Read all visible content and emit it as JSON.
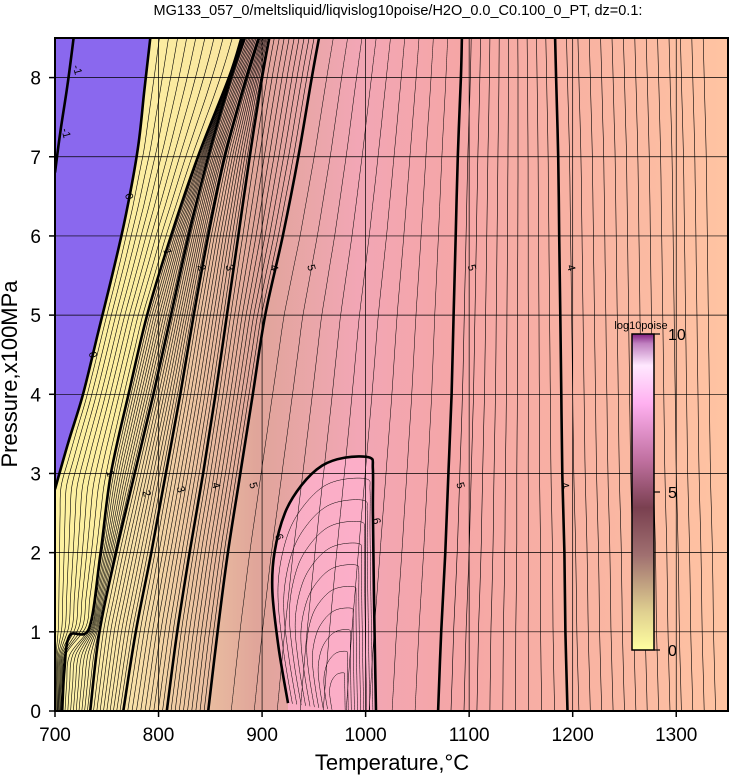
{
  "chart_data": {
    "type": "contour",
    "title": "MG133_057_0/meltsliquid/liqvislog10poise/H2O_0.0_C0.100_0_PT, dz=0.1:",
    "xlabel": "Temperature,°C",
    "ylabel": "Pressure,x100MPa",
    "xlim": [
      700,
      1350
    ],
    "ylim": [
      0,
      8.5
    ],
    "xticks": [
      700,
      800,
      900,
      1000,
      1100,
      1200,
      1300
    ],
    "yticks": [
      0,
      1,
      2,
      3,
      4,
      5,
      6,
      7,
      8
    ],
    "grid": true,
    "contour_interval": 0.1,
    "colorbar": {
      "title": "log10poise",
      "range": [
        0,
        10
      ],
      "ticks": [
        0,
        5,
        10
      ],
      "placement": "right-inside"
    },
    "major_contours": [
      {
        "level": -1,
        "label": "-1",
        "points": [
          [
            700,
            6.8
          ],
          [
            705,
            7.3
          ],
          [
            712,
            7.9
          ],
          [
            718,
            8.5
          ]
        ]
      },
      {
        "level": 0,
        "label": "0",
        "points": [
          [
            700,
            2.8
          ],
          [
            713,
            3.4
          ],
          [
            727,
            4.0
          ],
          [
            742,
            4.8
          ],
          [
            757,
            5.6
          ],
          [
            769,
            6.3
          ],
          [
            780,
            7.1
          ],
          [
            786,
            7.8
          ],
          [
            792,
            8.5
          ]
        ]
      },
      {
        "level": 1,
        "label": "1",
        "points": [
          [
            707,
            0
          ],
          [
            709,
            0.5
          ],
          [
            714,
            0.95
          ],
          [
            733,
            1.05
          ],
          [
            744,
            2.0
          ],
          [
            754,
            3.0
          ],
          [
            771,
            4.0
          ],
          [
            789,
            5.0
          ],
          [
            812,
            6.0
          ],
          [
            838,
            7.0
          ],
          [
            868,
            8.0
          ],
          [
            880,
            8.5
          ]
        ]
      },
      {
        "level": 2,
        "label": "2",
        "points": [
          [
            734,
            0
          ],
          [
            743,
            1.0
          ],
          [
            759,
            2.0
          ],
          [
            777,
            3.0
          ],
          [
            795,
            4.0
          ],
          [
            812,
            5.0
          ],
          [
            829,
            6.0
          ],
          [
            848,
            7.0
          ],
          [
            870,
            8.0
          ],
          [
            883,
            8.5
          ]
        ]
      },
      {
        "level": 3,
        "label": "3",
        "points": [
          [
            766,
            0
          ],
          [
            778,
            1.0
          ],
          [
            793,
            2.0
          ],
          [
            807,
            3.0
          ],
          [
            821,
            4.0
          ],
          [
            834,
            5.0
          ],
          [
            848,
            6.0
          ],
          [
            864,
            7.0
          ],
          [
            885,
            8.0
          ],
          [
            897,
            8.5
          ]
        ]
      },
      {
        "level": 4,
        "label": "4",
        "points": [
          [
            808,
            0
          ],
          [
            818,
            1.0
          ],
          [
            830,
            2.0
          ],
          [
            843,
            3.0
          ],
          [
            855,
            4.0
          ],
          [
            866,
            5.0
          ],
          [
            877,
            6.0
          ],
          [
            888,
            7.0
          ],
          [
            900,
            8.0
          ],
          [
            907,
            8.5
          ]
        ]
      },
      {
        "level": 5,
        "label": "5",
        "points": [
          [
            848,
            0
          ],
          [
            857,
            1.0
          ],
          [
            867,
            2.0
          ],
          [
            879,
            3.0
          ],
          [
            891,
            4.0
          ],
          [
            903,
            5.0
          ],
          [
            920,
            6.0
          ],
          [
            935,
            7.0
          ],
          [
            948,
            8.0
          ],
          [
            955,
            8.5
          ]
        ]
      },
      {
        "level": 6,
        "label": "6",
        "points": [
          [
            925,
            0.1
          ],
          [
            916,
            0.8
          ],
          [
            910,
            1.5
          ],
          [
            912,
            2.0
          ],
          [
            922,
            2.5
          ],
          [
            938,
            2.85
          ],
          [
            958,
            3.1
          ],
          [
            980,
            3.2
          ],
          [
            1004,
            3.2
          ],
          [
            1007,
            3.05
          ],
          [
            1007,
            2.5
          ],
          [
            1008,
            1.5
          ],
          [
            1010,
            0
          ]
        ]
      },
      {
        "level": 5,
        "label": "5",
        "points": [
          [
            1070,
            0
          ],
          [
            1073,
            1.0
          ],
          [
            1077,
            2.0
          ],
          [
            1080,
            3.0
          ],
          [
            1083,
            4.0
          ],
          [
            1085,
            5.0
          ],
          [
            1087,
            6.0
          ],
          [
            1089,
            7.0
          ],
          [
            1092,
            8.0
          ],
          [
            1093,
            8.5
          ]
        ]
      },
      {
        "level": 4,
        "label": "4",
        "points": [
          [
            1195,
            0
          ],
          [
            1193,
            1.0
          ],
          [
            1192,
            2.0
          ],
          [
            1190,
            3.0
          ],
          [
            1189,
            4.0
          ],
          [
            1188,
            5.0
          ],
          [
            1187,
            6.0
          ],
          [
            1186,
            7.0
          ],
          [
            1184,
            8.0
          ],
          [
            1183,
            8.5
          ]
        ]
      }
    ],
    "contour_labels": [
      {
        "text": "-1",
        "x": 722,
        "y": 8.1
      },
      {
        "text": "-1",
        "x": 711,
        "y": 7.3
      },
      {
        "text": "0",
        "x": 772,
        "y": 6.5
      },
      {
        "text": "0",
        "x": 737,
        "y": 4.5
      },
      {
        "text": "1",
        "x": 809,
        "y": 5.8
      },
      {
        "text": "1",
        "x": 754,
        "y": 3.0
      },
      {
        "text": "2",
        "x": 842,
        "y": 5.6
      },
      {
        "text": "2",
        "x": 789,
        "y": 2.75
      },
      {
        "text": "3",
        "x": 869,
        "y": 5.6
      },
      {
        "text": "3",
        "x": 822,
        "y": 2.8
      },
      {
        "text": "4",
        "x": 912,
        "y": 5.6
      },
      {
        "text": "4",
        "x": 856,
        "y": 2.85
      },
      {
        "text": "5",
        "x": 948,
        "y": 5.6
      },
      {
        "text": "5",
        "x": 892,
        "y": 2.85
      },
      {
        "text": "6",
        "x": 917,
        "y": 2.2
      },
      {
        "text": "6",
        "x": 1011,
        "y": 2.4
      },
      {
        "text": "5",
        "x": 1103,
        "y": 5.6
      },
      {
        "text": "5",
        "x": 1092,
        "y": 2.85
      },
      {
        "text": "4",
        "x": 1199,
        "y": 5.6
      },
      {
        "text": "4",
        "x": 1193,
        "y": 2.85
      }
    ]
  }
}
